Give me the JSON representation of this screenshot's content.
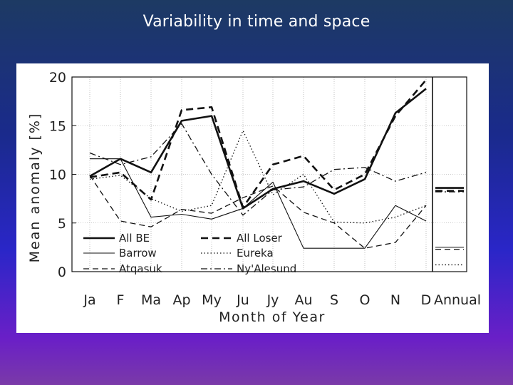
{
  "slide": {
    "title": "Variability in time and space"
  },
  "chart_data": {
    "type": "line",
    "title": "",
    "xlabel": "Month of Year",
    "ylabel": "Mean anomaly [%]",
    "ylim": [
      0,
      20
    ],
    "yticks": [
      "0",
      "5",
      "10",
      "15",
      "20"
    ],
    "categories": [
      "Ja",
      "F",
      "Ma",
      "Ap",
      "My",
      "Ju",
      "Jy",
      "Au",
      "S",
      "O",
      "N",
      "D"
    ],
    "annual_label": "Annual",
    "grid": true,
    "legend_position": "bottom-left",
    "series": [
      {
        "name": "All BE",
        "style": "solid-thick",
        "values": [
          9.8,
          11.6,
          10.2,
          15.5,
          16.0,
          6.5,
          8.5,
          9.3,
          8.0,
          9.5,
          16.3,
          18.8
        ],
        "annual": 8.6
      },
      {
        "name": "All Loser",
        "style": "dashed-thick",
        "values": [
          9.7,
          10.2,
          7.4,
          16.6,
          16.9,
          6.6,
          11.0,
          11.9,
          8.4,
          10.0,
          16.0,
          19.7
        ],
        "annual": 8.3
      },
      {
        "name": "Barrow",
        "style": "solid-thin",
        "values": [
          11.6,
          11.6,
          5.6,
          5.9,
          5.4,
          6.5,
          9.2,
          2.4,
          2.4,
          2.4,
          6.8,
          5.2
        ],
        "annual": 2.5
      },
      {
        "name": "Eureka",
        "style": "dotted",
        "values": [
          9.5,
          9.9,
          7.5,
          6.2,
          6.8,
          14.5,
          7.9,
          10.0,
          5.1,
          5.0,
          5.6,
          6.8
        ],
        "annual": 0.7
      },
      {
        "name": "Atqasuk",
        "style": "dashed-thin",
        "values": [
          9.9,
          5.2,
          4.6,
          6.4,
          6.0,
          7.6,
          8.8,
          6.1,
          5.0,
          2.4,
          3.0,
          6.8
        ],
        "annual": 2.3
      },
      {
        "name": "Ny'Alesund",
        "style": "dashdot",
        "values": [
          12.2,
          11.0,
          11.8,
          15.2,
          10.0,
          5.8,
          8.4,
          8.7,
          10.5,
          10.7,
          9.3,
          10.2
        ],
        "annual": 8.2
      }
    ]
  }
}
